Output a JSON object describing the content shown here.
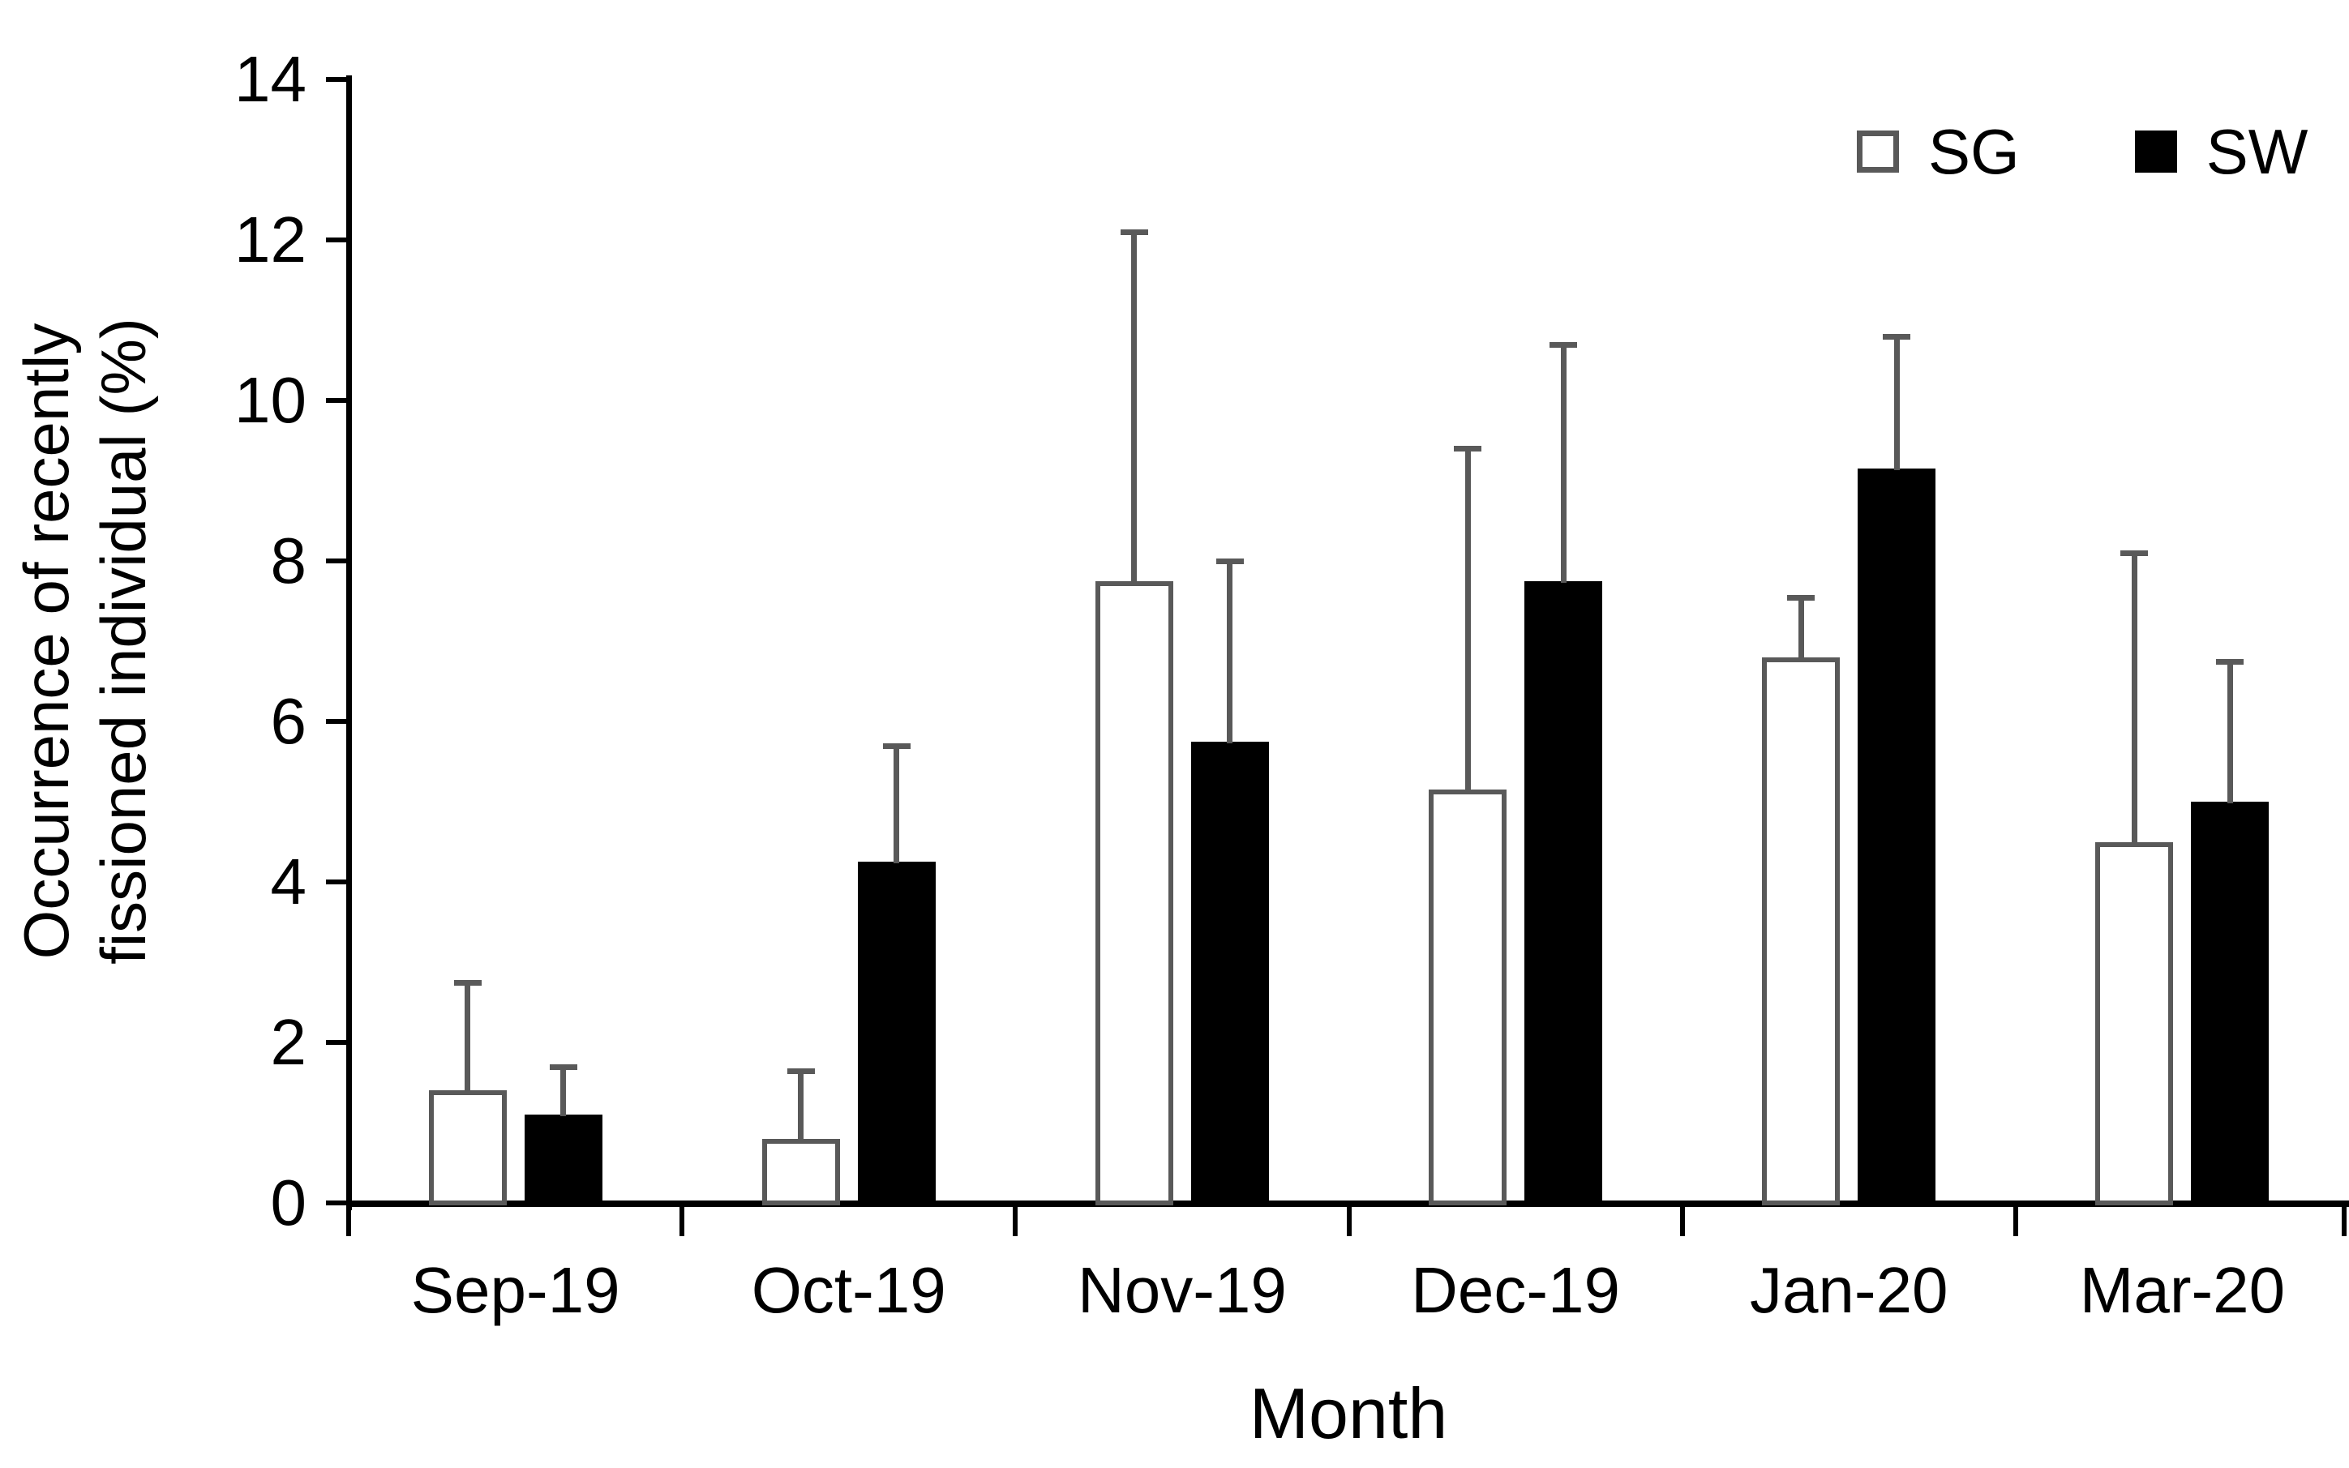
{
  "chart_data": {
    "type": "bar",
    "title": "",
    "categories": [
      "Sep-19",
      "Oct-19",
      "Nov-19",
      "Dec-19",
      "Jan-20",
      "Mar-20"
    ],
    "series": [
      {
        "name": "SG",
        "values": [
          1.4,
          0.8,
          7.75,
          5.15,
          6.8,
          4.5
        ],
        "errors": [
          1.35,
          0.85,
          4.35,
          4.25,
          0.75,
          3.6
        ],
        "fill": "#ffffff",
        "border": "#595959"
      },
      {
        "name": "SW",
        "values": [
          1.1,
          4.25,
          5.75,
          7.75,
          9.15,
          5.0
        ],
        "errors": [
          0.6,
          1.45,
          2.25,
          2.95,
          1.65,
          1.75
        ],
        "fill": "#000000",
        "border": "#000000"
      }
    ],
    "xlabel": "Month",
    "ylabel_line1": "Occurrence of recently",
    "ylabel_line2": "fissioned individual (%)",
    "ylim": [
      0,
      14
    ],
    "y_ticks": [
      "0",
      "2",
      "4",
      "6",
      "8",
      "10",
      "12",
      "14"
    ],
    "grid": false,
    "legend_position": "top-right",
    "error_bar_color": "#595959",
    "axis_color": "#000000"
  }
}
